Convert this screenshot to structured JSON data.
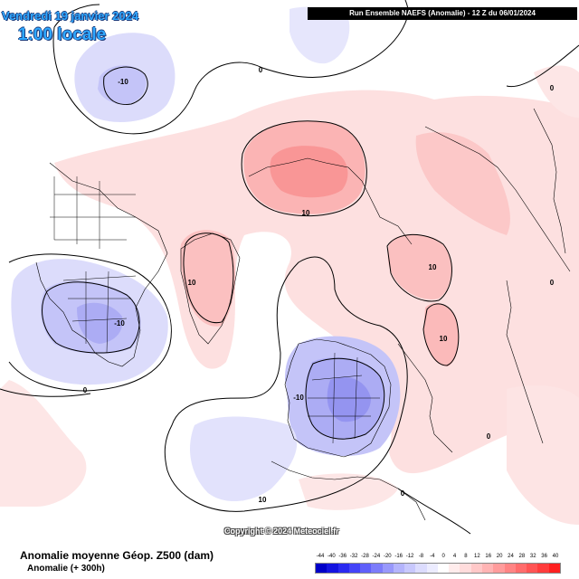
{
  "header": {
    "date": "Vendredi 19 janvier 2024",
    "time": "1:00 locale",
    "run_info": "Run Ensemble NAEFS  (Anomalie)  -  12 Z du 06/01/2024"
  },
  "copyright": "Copyright © 2024 Meteociel.fr",
  "footer": {
    "title": "Anomalie moyenne Géop. Z500 (dam)",
    "subtitle": "Anomalie (+ 300h)"
  },
  "contour_labels": [
    {
      "text": "-10"
    },
    {
      "text": "0"
    },
    {
      "text": "10"
    },
    {
      "text": "0"
    },
    {
      "text": "10"
    },
    {
      "text": "-10"
    },
    {
      "text": "0"
    },
    {
      "text": "-10"
    },
    {
      "text": "10"
    },
    {
      "text": "10"
    },
    {
      "text": "0"
    },
    {
      "text": "0"
    },
    {
      "text": "0"
    },
    {
      "text": "10"
    }
  ],
  "legend": {
    "labels": [
      "-44",
      "-40",
      "-36",
      "-32",
      "-28",
      "-24",
      "-20",
      "-16",
      "-12",
      "-8",
      "-4",
      "0",
      "4",
      "8",
      "12",
      "16",
      "20",
      "24",
      "28",
      "32",
      "36",
      "40"
    ],
    "colors": [
      "#0000c8",
      "#1414e0",
      "#2a2af0",
      "#4444f8",
      "#6060fa",
      "#7c7cfa",
      "#9898fb",
      "#b4b4fc",
      "#c8c8fd",
      "#dcdcfe",
      "#ececff",
      "#ffffff",
      "#ffecec",
      "#ffdcdc",
      "#ffc8c8",
      "#ffb4b4",
      "#ff9c9c",
      "#ff8484",
      "#ff6c6c",
      "#ff5454",
      "#ff3c3c",
      "#ff2020"
    ]
  }
}
